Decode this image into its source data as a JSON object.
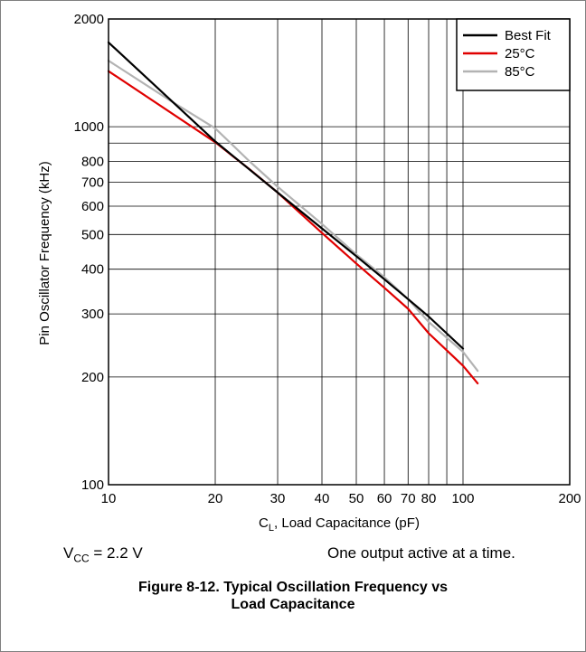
{
  "chart_data": {
    "type": "line",
    "xscale": "log",
    "yscale": "log",
    "xlim": [
      10,
      200
    ],
    "ylim": [
      100,
      2000
    ],
    "grid": true,
    "xlabel_main": "C",
    "xlabel_sub": "L",
    "xlabel_rest": ", Load Capacitance (pF)",
    "ylabel": "Pin Oscillator Frequency (kHz)",
    "x_ticks": [
      10,
      20,
      30,
      40,
      50,
      60,
      70,
      80,
      100,
      200
    ],
    "x_tick_labels": [
      "10",
      "20",
      "30",
      "40",
      "50",
      "60",
      "70",
      "80",
      "100",
      "200"
    ],
    "y_ticks": [
      100,
      200,
      300,
      400,
      500,
      600,
      700,
      800,
      1000,
      2000
    ],
    "y_tick_labels": [
      "100",
      "200",
      "300",
      "400",
      "500",
      "600",
      "700",
      "800",
      "1000",
      "2000"
    ],
    "legend_position": "top-right",
    "series": [
      {
        "name": "Best Fit",
        "color": "#000000",
        "x": [
          10,
          20,
          30,
          40,
          50,
          60,
          70,
          80,
          100
        ],
        "y": [
          1720,
          910,
          655,
          520,
          435,
          375,
          330,
          295,
          240
        ]
      },
      {
        "name": "25°C",
        "color": "#e00000",
        "x": [
          10,
          20,
          25,
          30,
          40,
          50,
          60,
          70,
          80,
          100,
          110
        ],
        "y": [
          1430,
          905,
          760,
          655,
          505,
          415,
          355,
          310,
          265,
          215,
          192
        ]
      },
      {
        "name": "85°C",
        "color": "#b3b3b3",
        "x": [
          10,
          15,
          20,
          25,
          30,
          40,
          50,
          60,
          70,
          80,
          100,
          110
        ],
        "y": [
          1530,
          1180,
          990,
          800,
          680,
          535,
          440,
          380,
          330,
          285,
          235,
          208
        ]
      }
    ]
  },
  "notes": {
    "vcc_main": "V",
    "vcc_sub": "CC",
    "vcc_rest": " = 2.2 V",
    "output_note": "One output active at a time."
  },
  "caption": {
    "line1": "Figure 8-12. Typical Oscillation Frequency vs",
    "line2": "Load Capacitance"
  }
}
